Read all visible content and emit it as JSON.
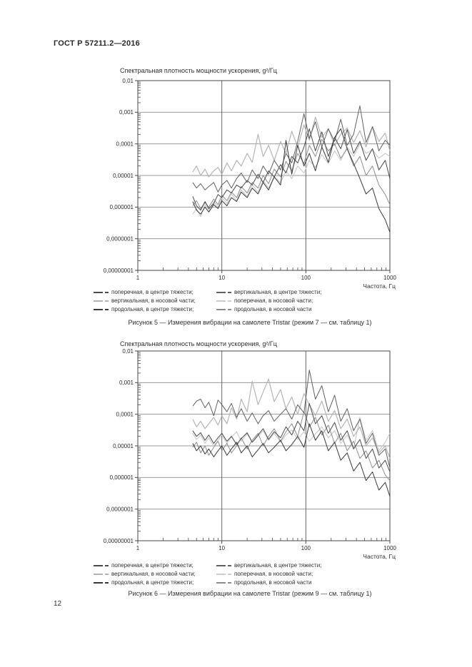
{
  "page": {
    "header": "ГОСТ Р 57211.2—2016",
    "page_number": "12"
  },
  "axis_style": {
    "grid_color": "#9a9a9a",
    "grid_vertical_color": "#666666",
    "border_color": "#474747",
    "tick_color": "#474747",
    "label_color": "#2b2b2b"
  },
  "chart_data": [
    {
      "type": "line",
      "title": "Спектральная плотность мощности ускорения, g²/Гц",
      "caption": "Рисунок 5 — Измерения вибрации на самолете Tristar (режим 7 — см. таблицу 1)",
      "xlabel": "Частота, Гц",
      "x_scale": "log",
      "y_scale": "log",
      "xlim": [
        1,
        1000
      ],
      "ylim": [
        1e-08,
        0.01
      ],
      "x_ticks": [
        "1",
        "10",
        "100",
        "1000"
      ],
      "y_ticks": [
        "0,01",
        "0,001",
        "0,0001",
        "0,00001",
        "0,000001",
        "0,0000001",
        "0,00000001"
      ],
      "grid": "on",
      "legend_position": "below",
      "freq_hz": [
        4.5,
        5,
        5.6,
        6.3,
        7,
        8,
        9,
        10,
        11.5,
        13,
        15,
        17,
        20,
        23,
        27,
        31,
        36,
        42,
        50,
        58,
        68,
        80,
        95,
        110,
        130,
        155,
        185,
        220,
        260,
        310,
        370,
        440,
        520,
        620,
        740,
        880,
        1000
      ],
      "series": [
        {
          "label": "поперечная, в центре тяжести;",
          "color": "#4a4a4a",
          "values": [
            2.2e-06,
            1.1e-06,
            8e-07,
            1.5e-06,
            9e-07,
            1.3e-06,
            2.5e-06,
            2e-06,
            3.5e-06,
            2.8e-06,
            5e-06,
            4e-06,
            7e-06,
            5e-06,
            1.1e-05,
            6e-06,
            1.4e-05,
            9e-06,
            2.2e-05,
            1.2e-05,
            4e-05,
            2.5e-05,
            8e-05,
            0.0003,
            6e-05,
            0.00024,
            4e-05,
            0.00016,
            7e-05,
            0.00028,
            5e-05,
            0.00012,
            3e-05,
            7e-05,
            1.5e-05,
            3e-05,
            8e-06
          ]
        },
        {
          "label": "вертикальная, в центре тяжести;",
          "color": "#606060",
          "values": [
            6e-06,
            4e-06,
            5.5e-06,
            3.5e-06,
            4.5e-06,
            6e-06,
            3e-06,
            5e-06,
            7e-06,
            4e-06,
            8e-06,
            1.2e-05,
            6e-06,
            1.5e-05,
            8e-06,
            2e-05,
            1.1e-05,
            3e-05,
            1.5e-05,
            5e-05,
            2.5e-05,
            0.00012,
            0.0009,
            0.00015,
            0.0005,
            8e-05,
            0.0003,
            0.00012,
            0.0006,
            9e-05,
            0.0002,
            0.0016,
            0.00011,
            0.00035,
            6e-05,
            0.00013,
            9e-05
          ]
        },
        {
          "label": "вертикальная, в носовой части;",
          "color": "#b4b4b4",
          "values": [
            1.3e-05,
            2e-05,
            1e-05,
            1.6e-05,
            9e-06,
            1.4e-05,
            1.8e-05,
            1.1e-05,
            2.5e-05,
            1.4e-05,
            3e-05,
            2e-05,
            5e-05,
            2.6e-05,
            0.0002,
            4e-05,
            9e-05,
            3e-05,
            0.00012,
            5e-05,
            0.00025,
            8e-05,
            0.0004,
            0.00013,
            0.0007,
            0.00016,
            0.0003,
            9e-05,
            0.0002,
            0.00032,
            0.00011,
            0.00026,
            8e-05,
            0.00035,
            0.00012,
            0.00022,
            6e-05
          ]
        },
        {
          "label": "поперечная, в носовой части;",
          "color": "#cccccc",
          "values": [
            6e-07,
            9e-07,
            5e-07,
            1.2e-06,
            8e-07,
            1.5e-06,
            1e-06,
            2e-06,
            1.3e-06,
            2.6e-06,
            1.6e-06,
            3.5e-06,
            2.2e-06,
            5e-06,
            3e-06,
            7e-06,
            4e-06,
            9e-06,
            6e-06,
            1.4e-05,
            8e-06,
            2e-05,
            1.2e-05,
            3e-05,
            1.8e-05,
            4.5e-05,
            2.4e-05,
            6e-05,
            3e-05,
            8e-05,
            4e-05,
            0.0001,
            5e-05,
            6.5e-05,
            3.5e-05,
            5e-05,
            4e-05
          ]
        },
        {
          "label": "продольная, в центре тяжести;",
          "color": "#383838",
          "values": [
            1.5e-06,
            8e-07,
            6e-07,
            1e-06,
            7e-07,
            1.2e-06,
            9e-07,
            1.6e-06,
            1.1e-06,
            2e-06,
            1.5e-06,
            3e-06,
            2e-06,
            4e-06,
            2.6e-06,
            6e-06,
            3.5e-06,
            9e-06,
            5e-06,
            0.00013,
            1.1e-05,
            9e-05,
            2e-05,
            5e-05,
            1.4e-05,
            8e-05,
            2.6e-05,
            0.00016,
            0.0003,
            7e-05,
            2.4e-05,
            8e-06,
            2.6e-06,
            4e-06,
            9e-07,
            4e-07,
            1.6e-07
          ]
        },
        {
          "label": "продольная, в носовой части",
          "color": "#8c8c8c",
          "values": [
            1.1e-06,
            1.6e-06,
            9e-07,
            1.4e-06,
            1e-06,
            1.8e-06,
            1.2e-06,
            2.4e-06,
            1.6e-06,
            3e-06,
            2e-06,
            4.5e-06,
            2.8e-06,
            6e-06,
            4e-06,
            1e-05,
            5.5e-06,
            1.6e-05,
            9e-06,
            2.8e-05,
            1.4e-05,
            5e-05,
            2.4e-05,
            9e-05,
            4e-05,
            0.00014,
            6e-05,
            0.0001,
            3.5e-05,
            7e-05,
            2e-05,
            4e-05,
            1e-05,
            2e-05,
            5e-06,
            2.5e-06,
            1.2e-06
          ]
        }
      ]
    },
    {
      "type": "line",
      "title": "Спектральная плотность мощности ускорения, g²/Гц",
      "caption": "Рисунок 6 — Измерения вибрации на самолете Tristar (режим 9 — см. таблицу 1)",
      "xlabel": "Частота, Гц",
      "x_scale": "log",
      "y_scale": "log",
      "xlim": [
        1,
        1000
      ],
      "ylim": [
        1e-08,
        0.01
      ],
      "x_ticks": [
        "1",
        "10",
        "100",
        "1000"
      ],
      "y_ticks": [
        "0,01",
        "0,001",
        "0,0001",
        "0,00001",
        "0,000001",
        "0,0000001",
        "0,00000001"
      ],
      "grid": "on",
      "legend_position": "below",
      "freq_hz": [
        4.5,
        5,
        5.6,
        6.3,
        7,
        8,
        9,
        10,
        11.5,
        13,
        15,
        17,
        20,
        23,
        27,
        31,
        36,
        42,
        50,
        58,
        68,
        80,
        95,
        110,
        130,
        155,
        185,
        220,
        260,
        310,
        370,
        440,
        520,
        620,
        740,
        880,
        1000
      ],
      "series": [
        {
          "label": "поперечная, в центре тяжести;",
          "color": "#4a4a4a",
          "values": [
            3e-05,
            2e-05,
            2.6e-05,
            1.5e-05,
            2.2e-05,
            1.2e-05,
            1.8e-05,
            2.5e-05,
            1.4e-05,
            2e-05,
            1.1e-05,
            1.7e-05,
            2.6e-05,
            1.3e-05,
            2.2e-05,
            3.5e-05,
            1.6e-05,
            2.8e-05,
            1.8e-05,
            4e-05,
            2.2e-05,
            6e-05,
            3e-05,
            0.00022,
            5e-05,
            9e-05,
            2.5e-05,
            5.5e-05,
            1.5e-05,
            3e-05,
            8e-06,
            1.6e-05,
            4e-06,
            8e-06,
            2e-06,
            3.5e-06,
            1.5e-06
          ]
        },
        {
          "label": "вертикальная, в центре тяжести;",
          "color": "#606060",
          "values": [
            0.00018,
            0.00026,
            0.0003,
            0.00016,
            0.00024,
            9e-05,
            0.00028,
            0.0002,
            0.00012,
            0.00022,
            8e-05,
            0.00015,
            6e-05,
            0.00011,
            5e-05,
            9e-05,
            0.00013,
            6e-05,
            0.0001,
            0.00015,
            7e-05,
            0.0002,
            0.00011,
            0.0025,
            0.0003,
            0.0008,
            0.00012,
            0.0004,
            6e-05,
            0.00015,
            3e-05,
            7e-05,
            1.2e-05,
            2.5e-05,
            5e-06,
            8e-06,
            2e-06
          ]
        },
        {
          "label": "вертикальная, в носовой части;",
          "color": "#b4b4b4",
          "values": [
            7e-05,
            4e-05,
            6e-05,
            3.5e-05,
            5e-05,
            8e-05,
            4.5e-05,
            9e-05,
            5e-05,
            0.00016,
            7e-05,
            0.0003,
            0.00012,
            0.0011,
            0.0002,
            0.0005,
            0.0013,
            0.00025,
            0.0006,
            0.00015,
            0.00035,
            0.0001,
            0.00045,
            0.0002,
            9e-05,
            0.00026,
            6e-05,
            0.00013,
            3.5e-05,
            7e-05,
            2e-05,
            4e-05,
            1e-05,
            1.8e-05,
            6e-06,
            1e-05,
            4e-06
          ]
        },
        {
          "label": "поперечная, в носовой части;",
          "color": "#cccccc",
          "values": [
            2.5e-05,
            1.6e-05,
            2.2e-05,
            1.2e-05,
            1.8e-05,
            1e-05,
            1.5e-05,
            2.2e-05,
            1.2e-05,
            1.9e-05,
            2.8e-05,
            1.4e-05,
            2.4e-05,
            1.3e-05,
            2e-05,
            3e-05,
            1.5e-05,
            2.5e-05,
            1.3e-05,
            2.2e-05,
            3.2e-05,
            1.6e-05,
            2.8e-05,
            1.4e-05,
            2.4e-05,
            4e-05,
            1.8e-05,
            3e-05,
            1.2e-05,
            2.2e-05,
            8e-06,
            8e-05,
            1.5e-05,
            3e-05,
            7e-06,
            1.3e-05,
            2.5e-05
          ]
        },
        {
          "label": "продольная, в центре тяжести;",
          "color": "#383838",
          "values": [
            1.2e-05,
            7e-06,
            1e-05,
            5.5e-06,
            8e-06,
            4.5e-06,
            7e-06,
            1e-05,
            5e-06,
            8e-06,
            1.3e-05,
            6e-06,
            1e-05,
            4.5e-06,
            7.5e-06,
            1.2e-05,
            6e-06,
            9e-06,
            1.5e-05,
            7e-06,
            1.1e-05,
            2e-05,
            9e-06,
            5e-05,
            1.5e-05,
            3e-05,
            7e-06,
            1.3e-05,
            3.5e-06,
            6e-06,
            1.6e-06,
            3e-06,
            8e-07,
            1.5e-06,
            4e-07,
            7e-07,
            2.5e-07
          ]
        },
        {
          "label": "продольная, в носовой части",
          "color": "#8c8c8c",
          "values": [
            9e-06,
            1.3e-05,
            6e-06,
            1e-05,
            5e-06,
            9e-06,
            1.4e-05,
            7e-06,
            1.2e-05,
            6e-06,
            1e-05,
            1.8e-05,
            8e-06,
            1.5e-05,
            2.5e-05,
            1e-05,
            2e-05,
            3.5e-05,
            1.4e-05,
            2.8e-05,
            5e-05,
            2e-05,
            0.00012,
            4e-05,
            8e-05,
            2.2e-05,
            4.5e-05,
            1.2e-05,
            2.5e-05,
            7e-06,
            1.4e-05,
            4e-06,
            7e-06,
            2e-06,
            3.5e-06,
            1.2e-06,
            8e-07
          ]
        }
      ]
    }
  ]
}
